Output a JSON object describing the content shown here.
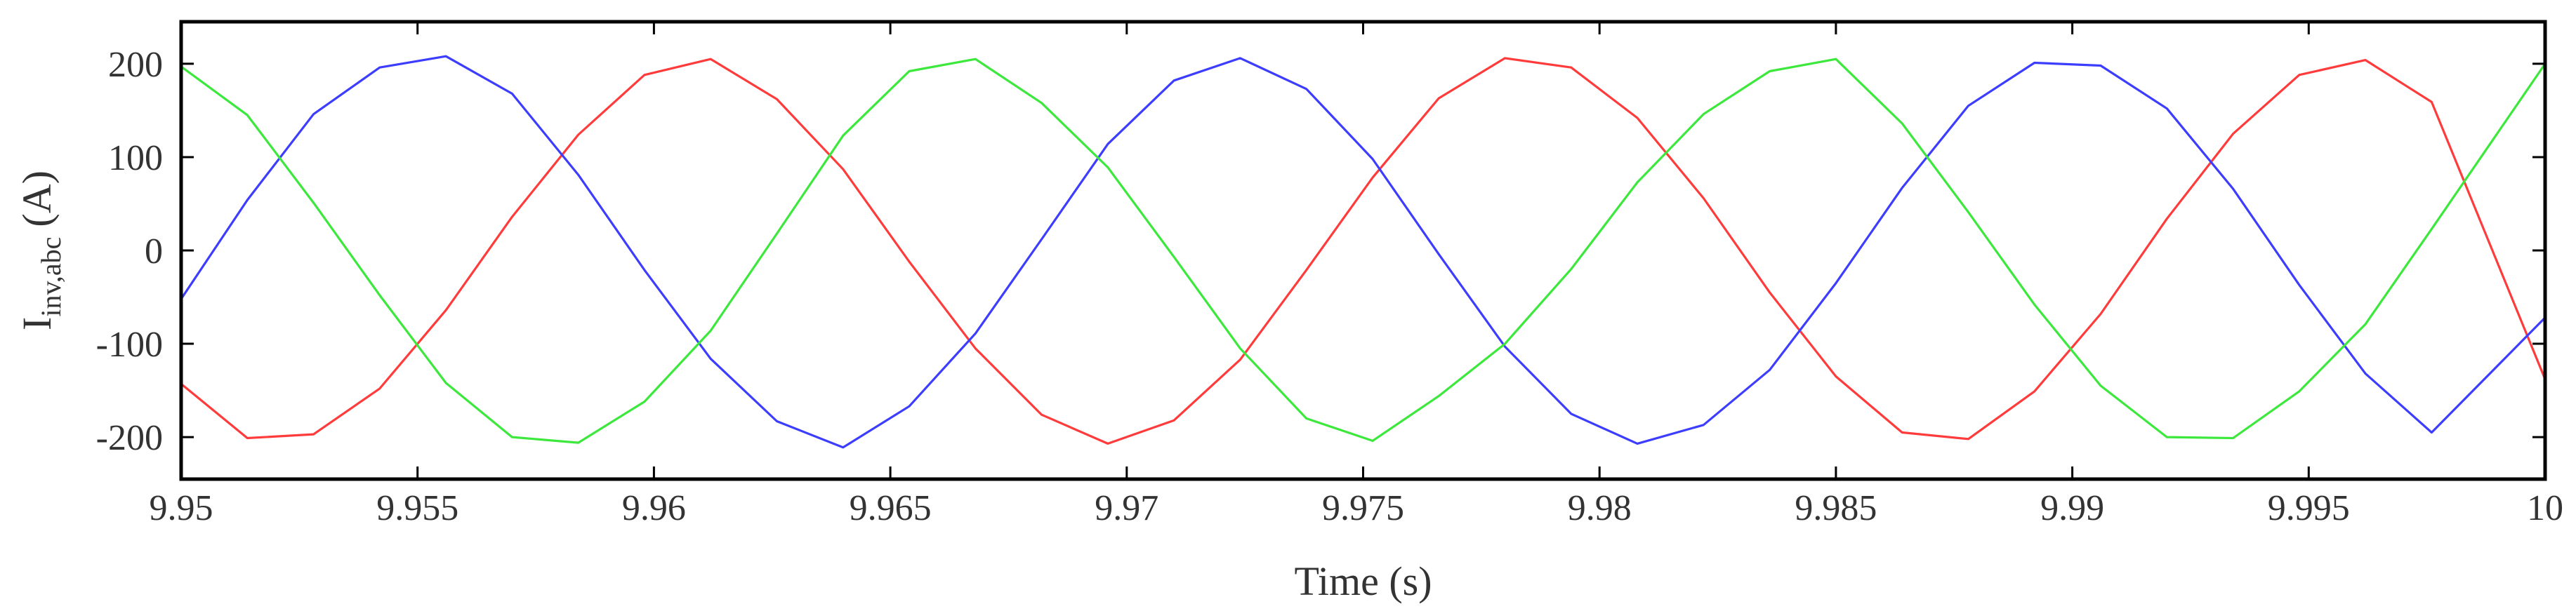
{
  "chart_data": {
    "type": "line",
    "title": "",
    "xlabel": "Time (s)",
    "ylabel_main": "I",
    "ylabel_sub": "inv,abc",
    "ylabel_unit": "(A)",
    "xlim": [
      9.95,
      10
    ],
    "ylim": [
      -245,
      245
    ],
    "x_ticks": [
      9.95,
      9.955,
      9.96,
      9.965,
      9.97,
      9.975,
      9.98,
      9.985,
      9.99,
      9.995,
      10
    ],
    "x_tick_labels": [
      "9.95",
      "9.955",
      "9.96",
      "9.965",
      "9.97",
      "9.975",
      "9.98",
      "9.985",
      "9.99",
      "9.995",
      "10"
    ],
    "y_ticks": [
      200,
      100,
      0,
      -100,
      -200
    ],
    "y_tick_labels": [
      "200",
      "100",
      "0",
      "-100",
      "-200"
    ],
    "grid": false,
    "legend": "none",
    "series": [
      {
        "color": "#ff3b3b",
        "x": [
          9.95,
          9.9514,
          9.9528,
          9.9542,
          9.9556,
          9.957,
          9.9584,
          9.9598,
          9.9612,
          9.9626,
          9.964,
          9.9654,
          9.9668,
          9.9682,
          9.9696,
          9.971,
          9.9724,
          9.9738,
          9.9752,
          9.9766,
          9.978,
          9.9794,
          9.9808,
          9.9822,
          9.9836,
          9.985,
          9.9864,
          9.9878,
          9.9892,
          9.9906,
          9.992,
          9.9934,
          9.9948,
          9.9962,
          9.9976,
          10
        ],
        "y": [
          -143,
          -201,
          -197,
          -148,
          -64,
          36,
          124,
          188,
          205,
          162,
          87,
          -12,
          -105,
          -176,
          -207,
          -182,
          -117,
          -21,
          78,
          163,
          206,
          196,
          142,
          56,
          -45,
          -135,
          -195,
          -202,
          -151,
          -68,
          34,
          125,
          188,
          204,
          159,
          -138
        ]
      },
      {
        "color": "#3d3dff",
        "x": [
          9.95,
          9.9514,
          9.9528,
          9.9542,
          9.9556,
          9.957,
          9.9584,
          9.9598,
          9.9612,
          9.9626,
          9.964,
          9.9654,
          9.9668,
          9.9682,
          9.9696,
          9.971,
          9.9724,
          9.9738,
          9.9752,
          9.9766,
          9.978,
          9.9794,
          9.9808,
          9.9822,
          9.9836,
          9.985,
          9.9864,
          9.9878,
          9.9892,
          9.9906,
          9.992,
          9.9934,
          9.9948,
          9.9962,
          9.9976,
          10
        ],
        "y": [
          -52,
          54,
          146,
          196,
          208,
          168,
          81,
          -21,
          -116,
          -183,
          -211,
          -167,
          -89,
          12,
          114,
          182,
          206,
          173,
          98,
          -4,
          -103,
          -175,
          -207,
          -187,
          -128,
          -35,
          67,
          155,
          201,
          198,
          152,
          66,
          -37,
          -132,
          -195,
          -72
        ]
      },
      {
        "color": "#3be83b",
        "x": [
          9.95,
          9.9514,
          9.9528,
          9.9542,
          9.9556,
          9.957,
          9.9584,
          9.9598,
          9.9612,
          9.9626,
          9.964,
          9.9654,
          9.9668,
          9.9682,
          9.9696,
          9.971,
          9.9724,
          9.9738,
          9.9752,
          9.9766,
          9.978,
          9.9794,
          9.9808,
          9.9822,
          9.9836,
          9.985,
          9.9864,
          9.9878,
          9.9892,
          9.9906,
          9.992,
          9.9934,
          9.9948,
          9.9962,
          9.9976,
          10
        ],
        "y": [
          197,
          145,
          51,
          -48,
          -142,
          -200,
          -206,
          -162,
          -86,
          18,
          123,
          192,
          205,
          158,
          89,
          -7,
          -105,
          -180,
          -204,
          -156,
          -100,
          -20,
          73,
          146,
          192,
          205,
          136,
          41,
          -58,
          -145,
          -200,
          -201,
          -151,
          -79,
          23,
          200
        ]
      }
    ]
  }
}
